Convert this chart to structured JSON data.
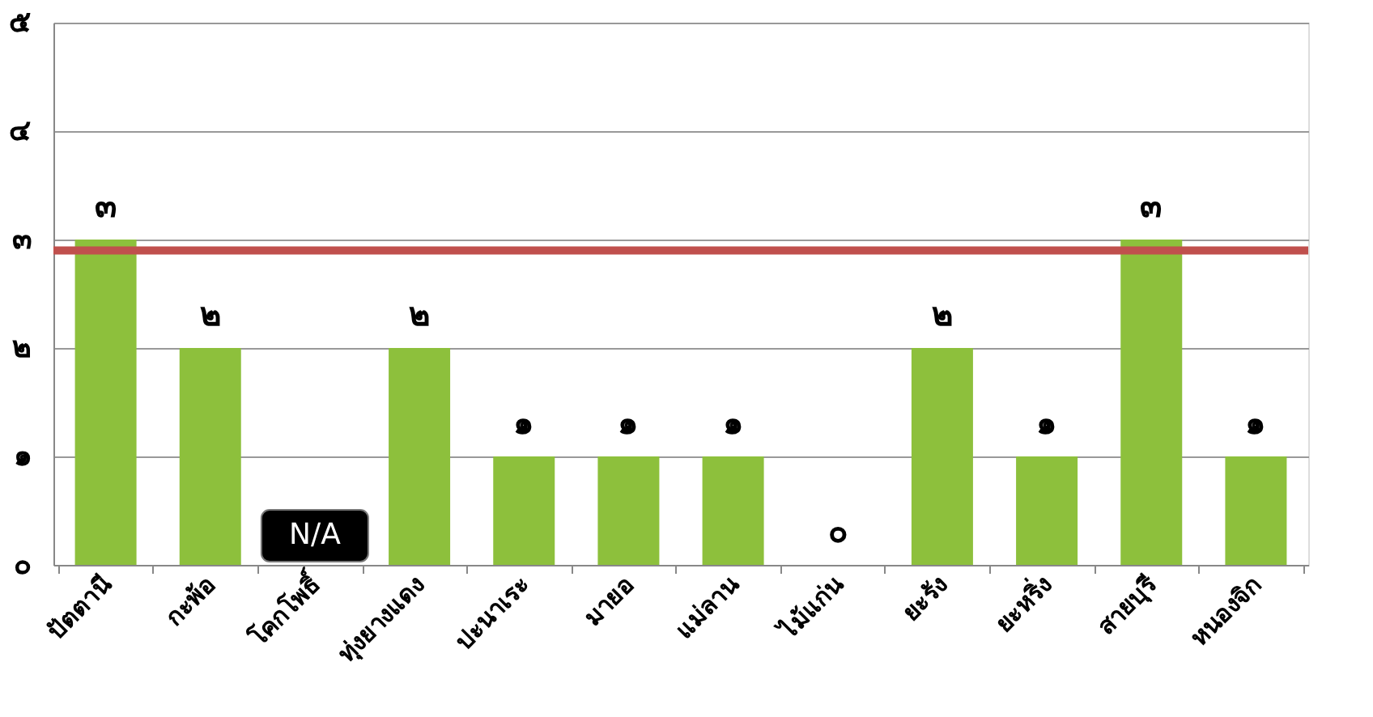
{
  "chart_data": {
    "type": "bar",
    "categories": [
      "ปัตตานี",
      "กะพ้อ",
      "โคกโพธิ์",
      "ทุ่งยางแดง",
      "ปะนาเระ",
      "มายอ",
      "แม่ลาน",
      "ไม้แก่น",
      "ยะรัง",
      "ยะหริ่ง",
      "สายบุรี",
      "หนองจิก"
    ],
    "values": [
      3,
      2,
      null,
      2,
      1,
      1,
      1,
      0,
      2,
      1,
      3,
      1
    ],
    "value_labels": [
      "๓",
      "๒",
      "N/A",
      "๒",
      "๑",
      "๑",
      "๑",
      "๐",
      "๒",
      "๑",
      "๓",
      "๑"
    ],
    "color": "#8dc03c",
    "ylim": [
      0,
      5
    ],
    "yticks": [
      {
        "value": 0,
        "label": "๐"
      },
      {
        "value": 1,
        "label": "๑"
      },
      {
        "value": 2,
        "label": "๒"
      },
      {
        "value": 3,
        "label": "๓"
      },
      {
        "value": 4,
        "label": "๔"
      },
      {
        "value": 5,
        "label": "๕"
      }
    ],
    "grid": "y",
    "ref_lines": [
      {
        "axis": "y",
        "value": 2.9,
        "color": "#c0504d"
      }
    ]
  }
}
